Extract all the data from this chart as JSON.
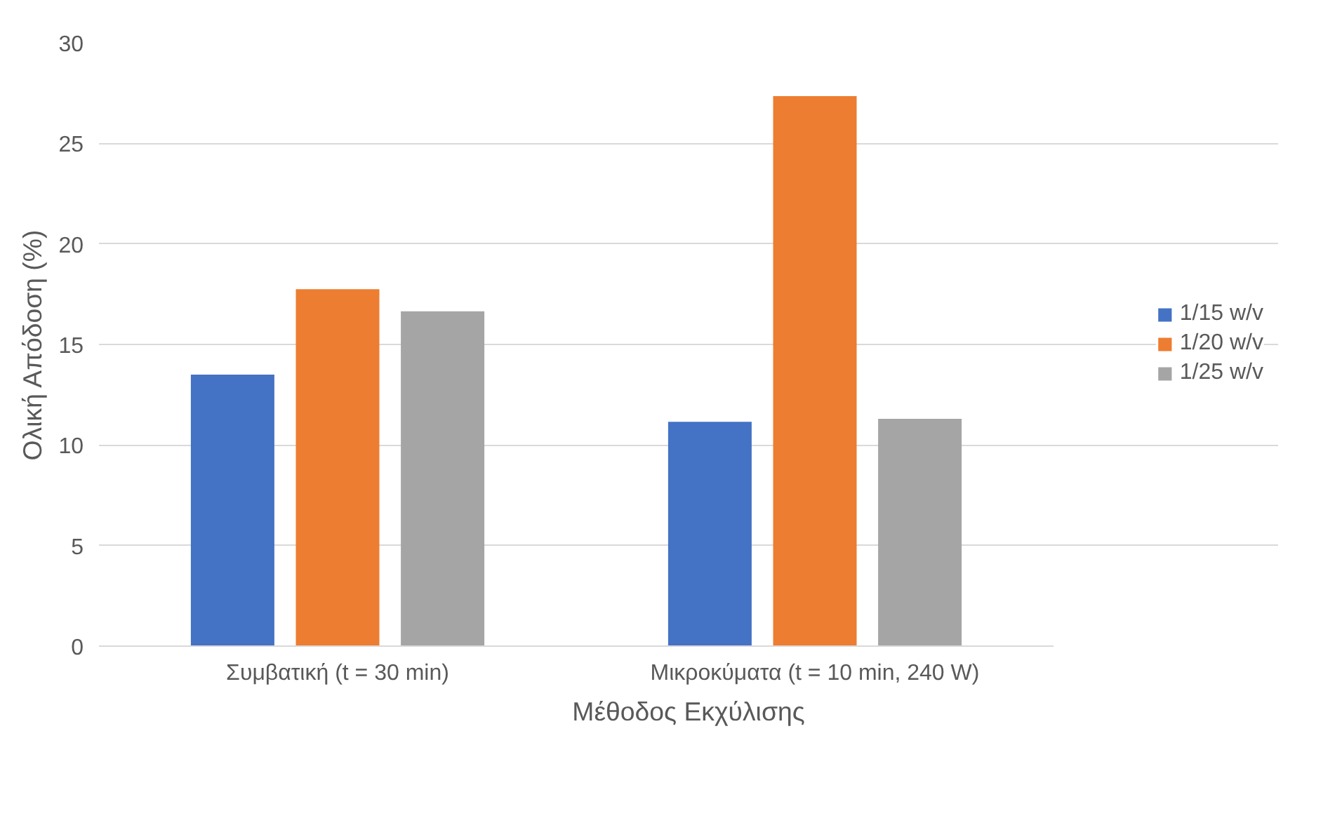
{
  "chart_data": {
    "type": "bar",
    "xlabel": "Μέθοδος Εκχύλισης",
    "ylabel": "Ολική Απόδοση (%)",
    "categories": [
      "Συμβατική (t = 30 min)",
      "Μικροκύματα (t = 10 min, 240 W)"
    ],
    "series": [
      {
        "name": "1/15 w/v",
        "color": "#4472c4",
        "values": [
          13.5,
          11.15
        ]
      },
      {
        "name": "1/20 w/v",
        "color": "#ed7d31",
        "values": [
          17.75,
          27.35
        ]
      },
      {
        "name": "1/25 w/v",
        "color": "#a5a5a5",
        "values": [
          16.65,
          11.3
        ]
      }
    ],
    "ylim": [
      0,
      30
    ],
    "yticks": [
      0,
      5,
      10,
      15,
      20,
      25,
      30
    ],
    "grid": "y",
    "legend": "right"
  }
}
